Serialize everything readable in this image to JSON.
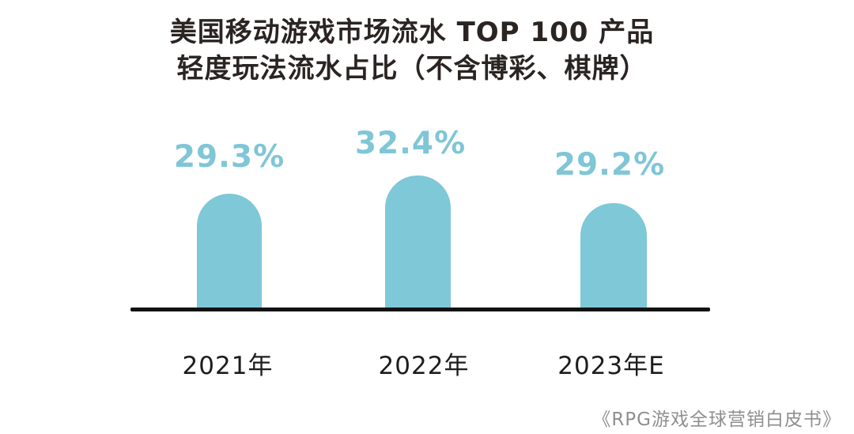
{
  "page": {
    "background_color": "#ffffff"
  },
  "chart": {
    "title_line1": "美国移动游戏市场流水 TOP 100 产品",
    "title_line2": "轻度玩法流水占比（不含博彩、棋牌）"
  },
  "chart_data": {
    "type": "bar",
    "title": "美国移动游戏市场流水 TOP 100 产品 轻度玩法流水占比（不含博彩、棋牌）",
    "categories": [
      "2021年",
      "2022年",
      "2023年E"
    ],
    "values": [
      29.3,
      32.4,
      29.2
    ],
    "unit": "%",
    "xlabel": "",
    "ylabel": "",
    "grid": false,
    "legend": false,
    "bar_shape": "rounded-top",
    "bar_color": "#7ec8d8",
    "value_label_color": "#7fc6d7",
    "axis_line_color": "#121212",
    "bars": [
      {
        "category": "2021年",
        "value": 29.3,
        "label": "29.3%"
      },
      {
        "category": "2022年",
        "value": 32.4,
        "label": "32.4%"
      },
      {
        "category": "2023年E",
        "value": 29.2,
        "label": "29.2%"
      }
    ]
  },
  "footer": {
    "source": "《RPG游戏全球营销白皮书》"
  }
}
